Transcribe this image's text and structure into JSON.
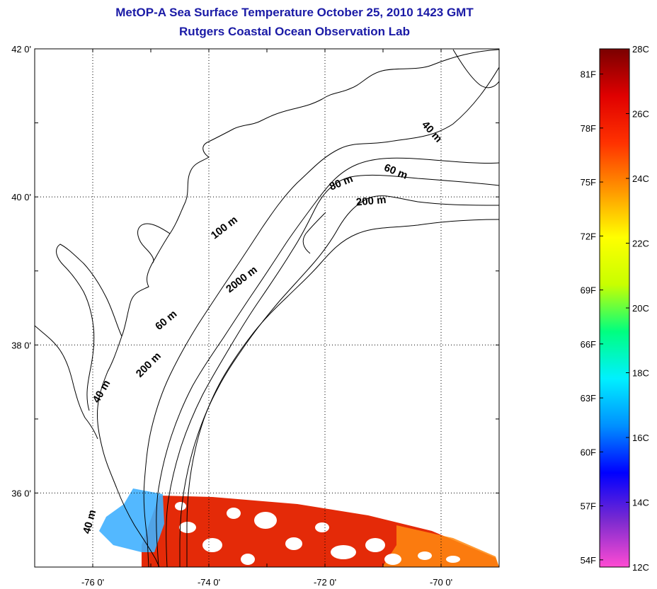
{
  "title": {
    "line1": "MetOP-A Sea Surface Temperature October 25, 2010 1423 GMT",
    "line2": "Rutgers Coastal Ocean Observation Lab"
  },
  "map": {
    "lon_range": [
      -77,
      -69
    ],
    "lat_range": [
      35,
      42
    ],
    "x_ticks": [
      {
        "lon": -76,
        "label": "-76 0'"
      },
      {
        "lon": -74,
        "label": "-74 0'"
      },
      {
        "lon": -72,
        "label": "-72 0'"
      },
      {
        "lon": -70,
        "label": "-70 0'"
      }
    ],
    "y_ticks": [
      {
        "lat": 42,
        "label": "42 0'"
      },
      {
        "lat": 40,
        "label": "40 0'"
      },
      {
        "lat": 38,
        "label": "38 0'"
      },
      {
        "lat": 36,
        "label": "36 0'"
      }
    ],
    "grid": "dotted",
    "contour_labels": [
      {
        "text": "40 m",
        "lon": -70.2,
        "lat": 40.85,
        "angle": 48
      },
      {
        "text": "60 m",
        "lon": -70.8,
        "lat": 40.3,
        "angle": 22
      },
      {
        "text": "80 m",
        "lon": -71.7,
        "lat": 40.15,
        "angle": -22
      },
      {
        "text": "200 m",
        "lon": -71.2,
        "lat": 39.9,
        "angle": -5
      },
      {
        "text": "100 m",
        "lon": -73.7,
        "lat": 39.55,
        "angle": -38
      },
      {
        "text": "2000 m",
        "lon": -73.4,
        "lat": 38.85,
        "angle": -38
      },
      {
        "text": "60 m",
        "lon": -74.7,
        "lat": 38.3,
        "angle": -40
      },
      {
        "text": "200 m",
        "lon": -75.0,
        "lat": 37.7,
        "angle": -45
      },
      {
        "text": "40 m",
        "lon": -75.8,
        "lat": 37.35,
        "angle": -60
      },
      {
        "text": "40 m",
        "lon": -76.0,
        "lat": 35.6,
        "angle": -75
      }
    ]
  },
  "colorbar": {
    "f_labels": [
      {
        "label": "81F",
        "value": 81
      },
      {
        "label": "78F",
        "value": 78
      },
      {
        "label": "75F",
        "value": 75
      },
      {
        "label": "72F",
        "value": 72
      },
      {
        "label": "69F",
        "value": 69
      },
      {
        "label": "66F",
        "value": 66
      },
      {
        "label": "63F",
        "value": 63
      },
      {
        "label": "60F",
        "value": 60
      },
      {
        "label": "57F",
        "value": 57
      },
      {
        "label": "54F",
        "value": 54
      }
    ],
    "c_labels": [
      {
        "label": "28C",
        "value": 28
      },
      {
        "label": "26C",
        "value": 26
      },
      {
        "label": "24C",
        "value": 24
      },
      {
        "label": "22C",
        "value": 22
      },
      {
        "label": "20C",
        "value": 20
      },
      {
        "label": "18C",
        "value": 18
      },
      {
        "label": "16C",
        "value": 16
      },
      {
        "label": "14C",
        "value": 14
      },
      {
        "label": "12C",
        "value": 12
      }
    ],
    "c_range": [
      12,
      28
    ],
    "colors": [
      "#ff4bd2",
      "#7a2ad0",
      "#0000ff",
      "#0090ff",
      "#00f0ff",
      "#00ff80",
      "#c8ff00",
      "#ffff00",
      "#ff9600",
      "#ff3200",
      "#e00000",
      "#7a0000"
    ]
  }
}
